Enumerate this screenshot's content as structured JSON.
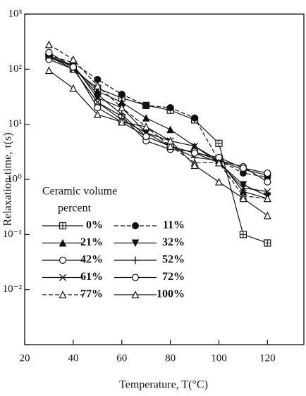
{
  "chart_data": {
    "type": "line",
    "xlabel": "Temperature, T(°C)",
    "ylabel": "Relaxation time, τ(s)",
    "legend_title": [
      "Ceramic volume",
      "percent"
    ],
    "legend": "lower left",
    "log_y": true,
    "color": "#111111",
    "xlim": [
      20,
      135
    ],
    "xticks": [
      20,
      40,
      60,
      80,
      100,
      120
    ],
    "ylim": [
      0.001,
      1000
    ],
    "yticks": [
      {
        "value": 0.001,
        "label": ""
      },
      {
        "value": 0.01,
        "label": "10⁻²"
      },
      {
        "value": 0.1,
        "label": "10⁻¹"
      },
      {
        "value": 1,
        "label": "10⁰"
      },
      {
        "value": 10,
        "label": "10¹"
      },
      {
        "value": 100,
        "label": "10²"
      },
      {
        "value": 1000,
        "label": "10³"
      }
    ],
    "x": [
      30,
      40,
      50,
      60,
      70,
      80,
      90,
      100,
      110,
      120
    ],
    "series": [
      {
        "name": "0%",
        "marker": "square-cross",
        "dash": false,
        "values": [
          170,
          100,
          45,
          30,
          22,
          18,
          12,
          4.5,
          0.1,
          0.07
        ]
      },
      {
        "name": "11%",
        "marker": "filled-circle",
        "dash": true,
        "values": [
          180,
          130,
          65,
          35,
          22,
          20,
          13,
          2.2,
          1.3,
          1.1
        ]
      },
      {
        "name": "21%",
        "marker": "filled-triangle",
        "dash": false,
        "values": [
          170,
          110,
          40,
          25,
          13,
          8,
          4,
          2.2,
          0.6,
          0.45
        ]
      },
      {
        "name": "32%",
        "marker": "filled-triangle-down",
        "dash": false,
        "values": [
          160,
          120,
          30,
          20,
          7,
          4,
          3,
          2,
          0.8,
          0.5
        ]
      },
      {
        "name": "42%",
        "marker": "open-circle",
        "dash": false,
        "values": [
          150,
          100,
          25,
          14,
          5,
          3.5,
          3.2,
          2.2,
          1.7,
          0.9
        ]
      },
      {
        "name": "52%",
        "marker": "plus",
        "dash": false,
        "values": [
          180,
          110,
          35,
          15,
          6,
          4,
          2.5,
          2.2,
          1.5,
          1.2
        ]
      },
      {
        "name": "61%",
        "marker": "x",
        "dash": false,
        "values": [
          170,
          100,
          25,
          12,
          7,
          5,
          4,
          2,
          0.7,
          0.6
        ]
      },
      {
        "name": "72%",
        "marker": "open-circle",
        "dash": false,
        "values": [
          200,
          110,
          20,
          11,
          6,
          4,
          3,
          2.5,
          1.6,
          1.3
        ]
      },
      {
        "name": "77%",
        "marker": "open-triangle",
        "dash": true,
        "values": [
          280,
          150,
          50,
          20,
          9,
          4,
          2,
          2,
          0.5,
          0.45
        ]
      },
      {
        "name": "100%",
        "marker": "open-triangle",
        "dash": false,
        "values": [
          95,
          45,
          15,
          11,
          9,
          5,
          1.8,
          0.9,
          0.45,
          0.22
        ]
      }
    ]
  }
}
